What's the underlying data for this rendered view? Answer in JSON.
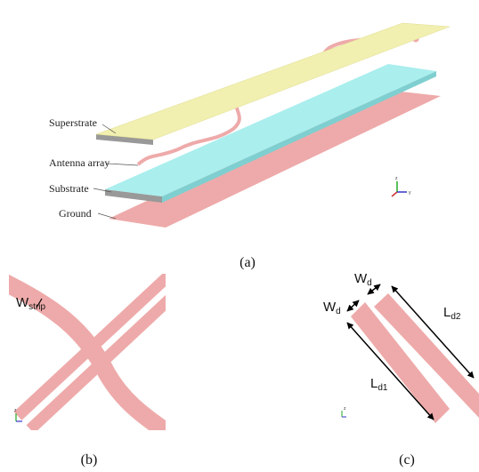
{
  "panel_a": {
    "labels": [
      "Superstrate",
      "Antenna array",
      "Substrate",
      "Ground"
    ],
    "axes": [
      "z",
      "y"
    ],
    "caption": "(a)"
  },
  "panel_b": {
    "dimension": {
      "main": "W",
      "sub": "strip"
    },
    "axes": [
      "z"
    ],
    "caption": "(b)"
  },
  "panel_c": {
    "dimensions": [
      {
        "main": "W",
        "sub": "d"
      },
      {
        "main": "W",
        "sub": "d"
      },
      {
        "main": "L",
        "sub": "d2"
      },
      {
        "main": "L",
        "sub": "d1"
      }
    ],
    "axes": [
      "z"
    ],
    "caption": "(c)"
  }
}
